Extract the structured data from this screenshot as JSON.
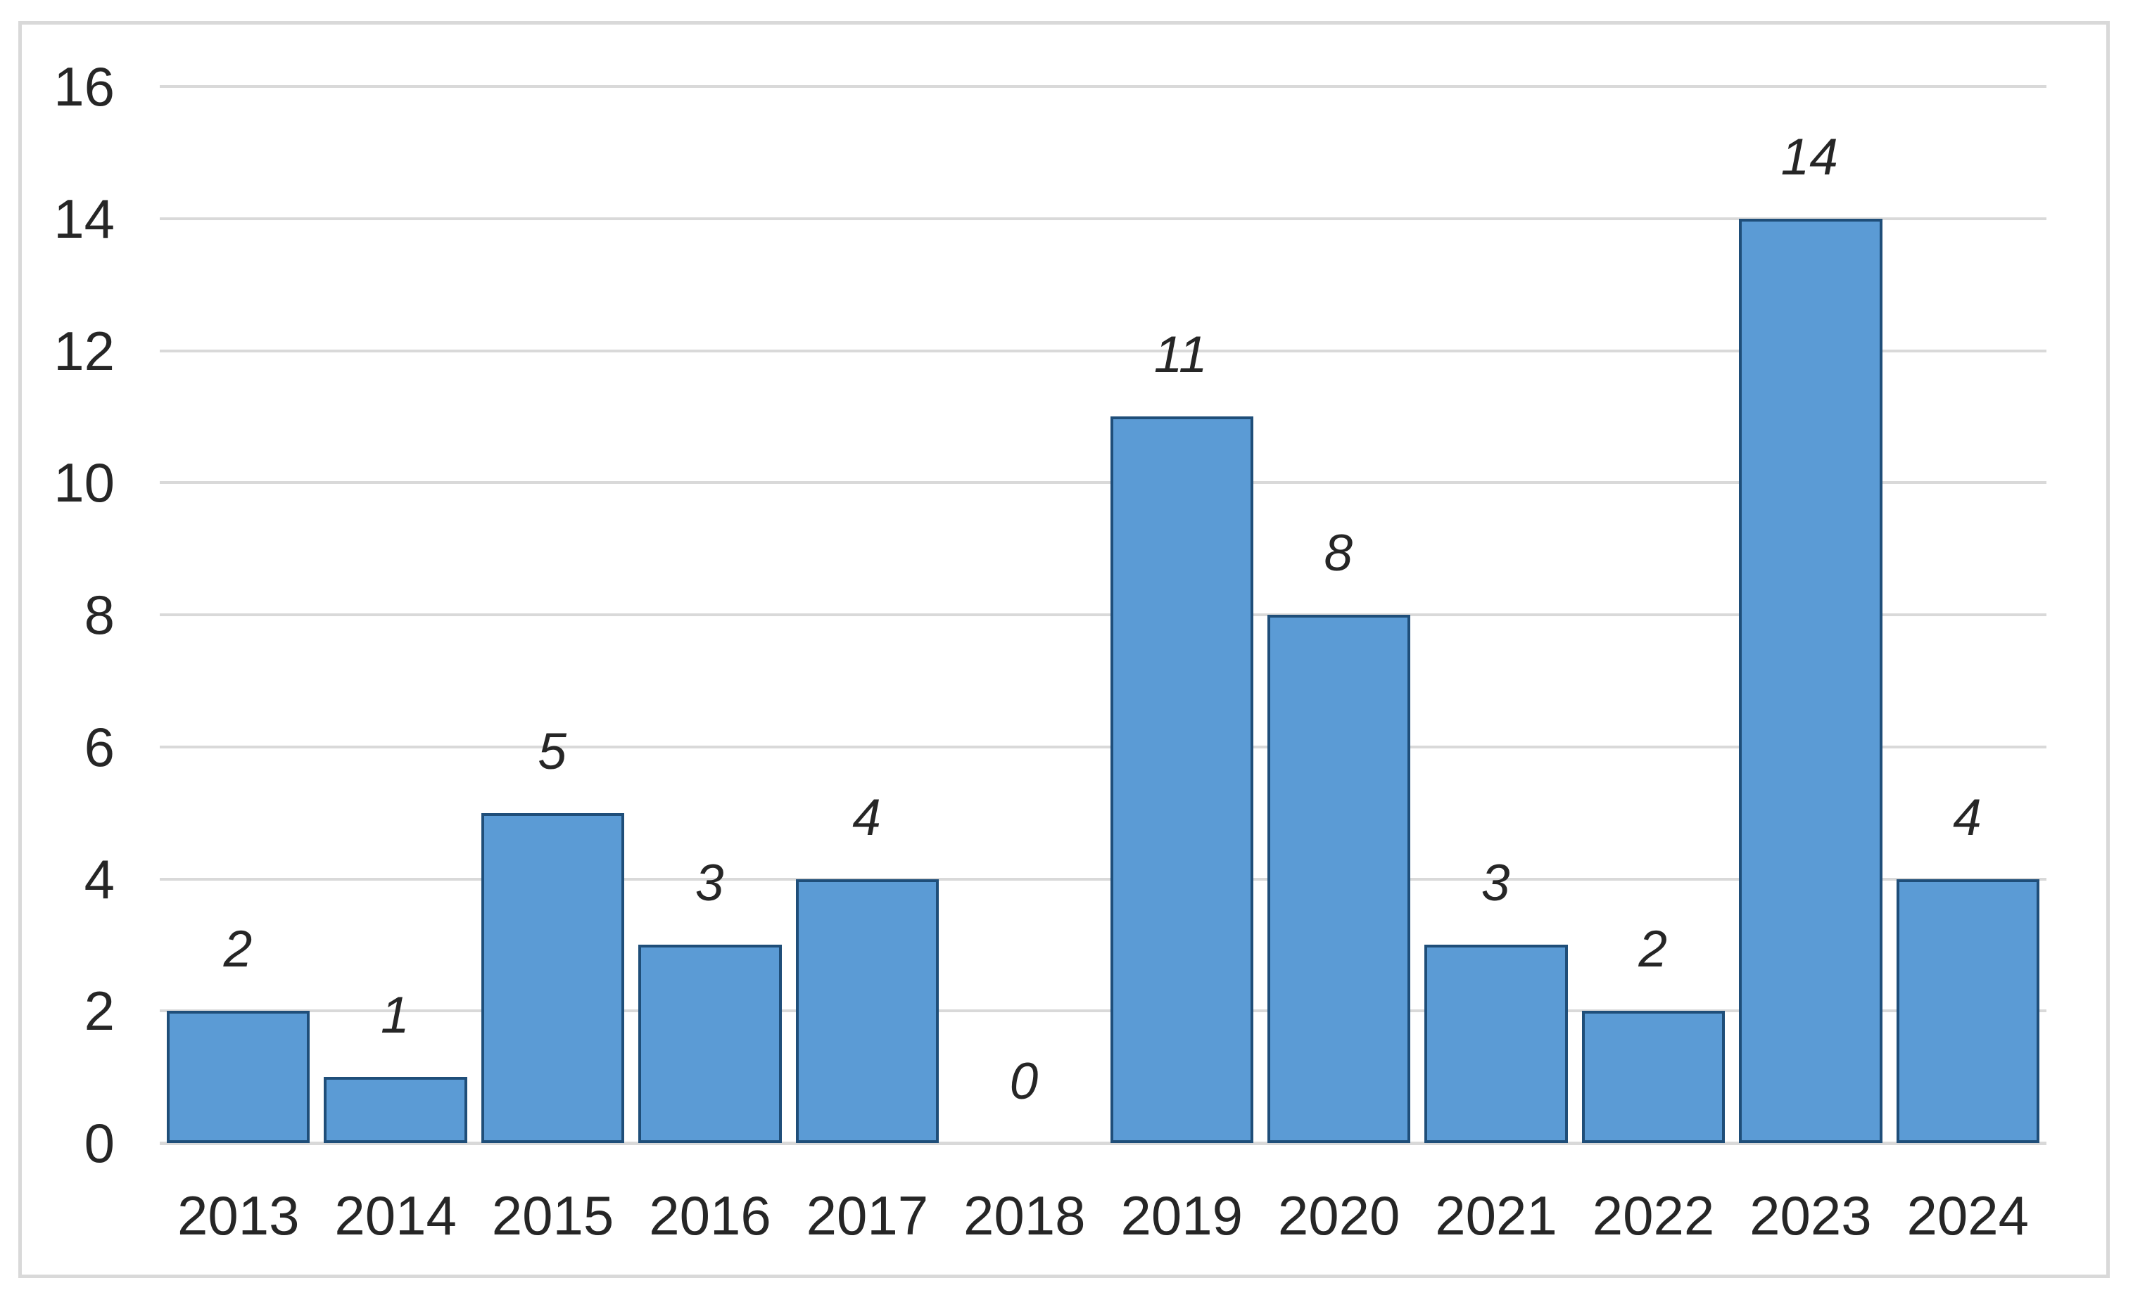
{
  "chart_data": {
    "type": "bar",
    "categories": [
      "2013",
      "2014",
      "2015",
      "2016",
      "2017",
      "2018",
      "2019",
      "2020",
      "2021",
      "2022",
      "2023",
      "2024"
    ],
    "values": [
      2,
      1,
      5,
      3,
      4,
      0,
      11,
      8,
      3,
      2,
      14,
      4
    ],
    "data_labels": [
      "2",
      "1",
      "5",
      "3",
      "4",
      "0",
      "11",
      "8",
      "3",
      "2",
      "14",
      "4"
    ],
    "title": "",
    "xlabel": "",
    "ylabel": "",
    "ylim": [
      0,
      16
    ],
    "yticks": [
      0,
      2,
      4,
      6,
      8,
      10,
      12,
      14,
      16
    ],
    "grid": true,
    "legend": false,
    "data_label_style": "italic",
    "colors": {
      "bar_fill": "#5B9BD5",
      "bar_border": "#1F4E79",
      "gridline": "#D9D9D9",
      "frame": "#D9D9D9",
      "text": "#262626",
      "background": "#FFFFFF"
    }
  }
}
